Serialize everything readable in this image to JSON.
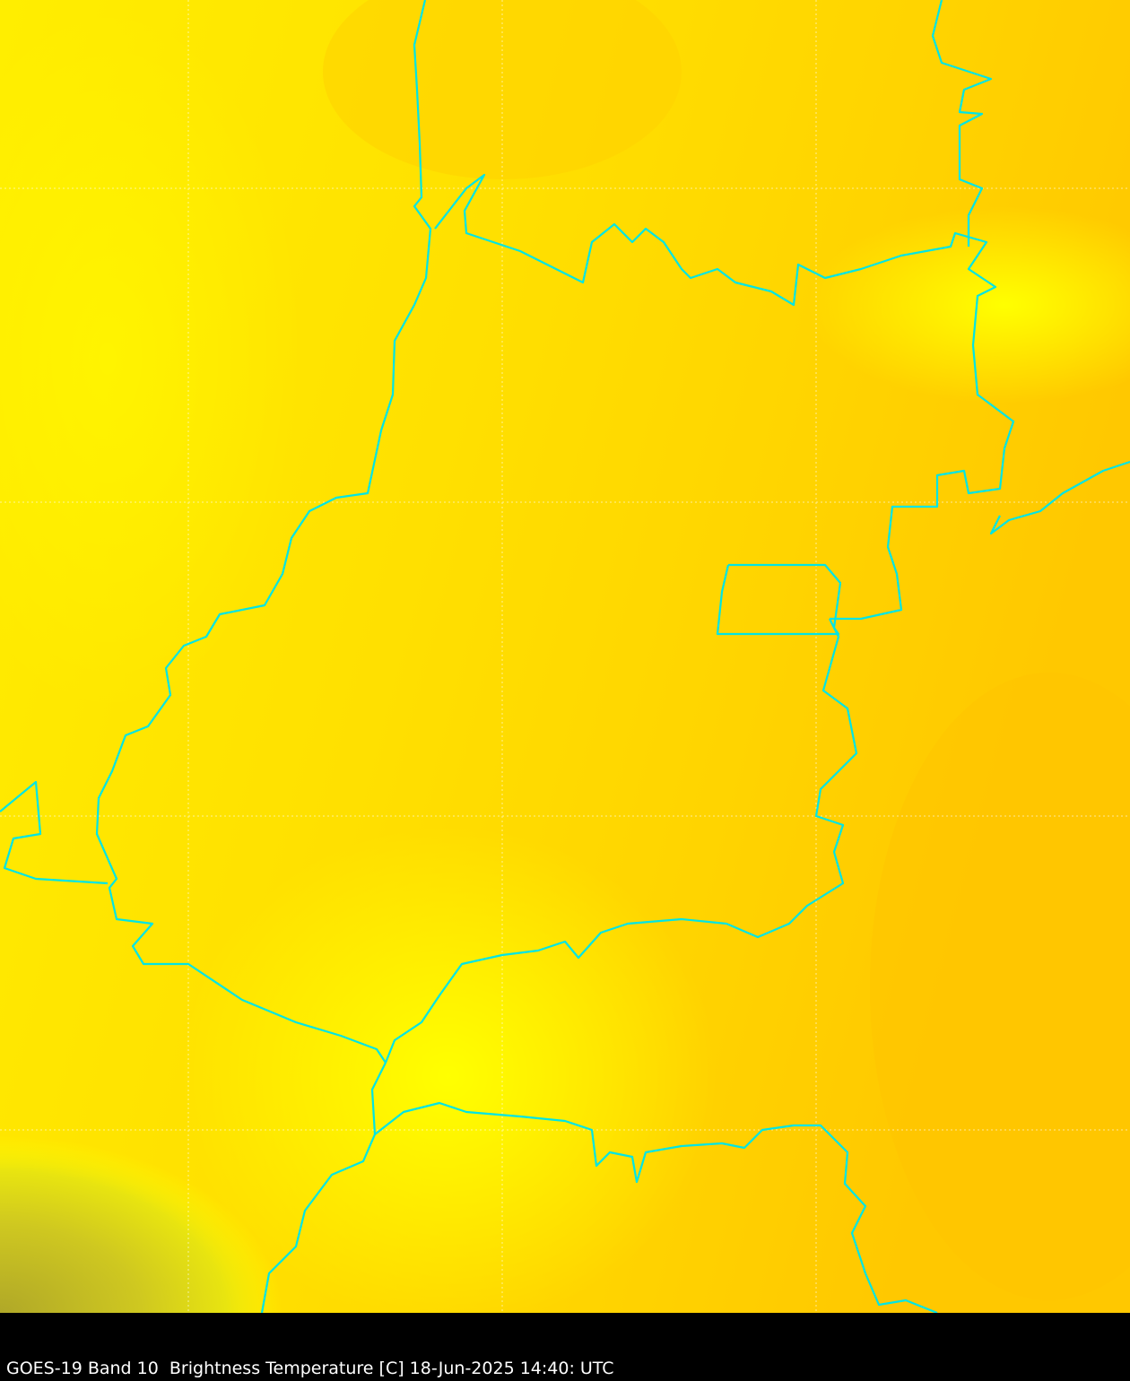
{
  "caption": "GOES-19 Band 10  Brightness Temperature [C] 18-Jun-2025 14:40: UTC",
  "colors": {
    "boundary": "#00e5e5",
    "warm": "#ffd200",
    "mid": "#ffe600",
    "cool": "#ffff00",
    "cold": "#b8b020",
    "grid": "#ffffff",
    "background": "#000000"
  }
}
